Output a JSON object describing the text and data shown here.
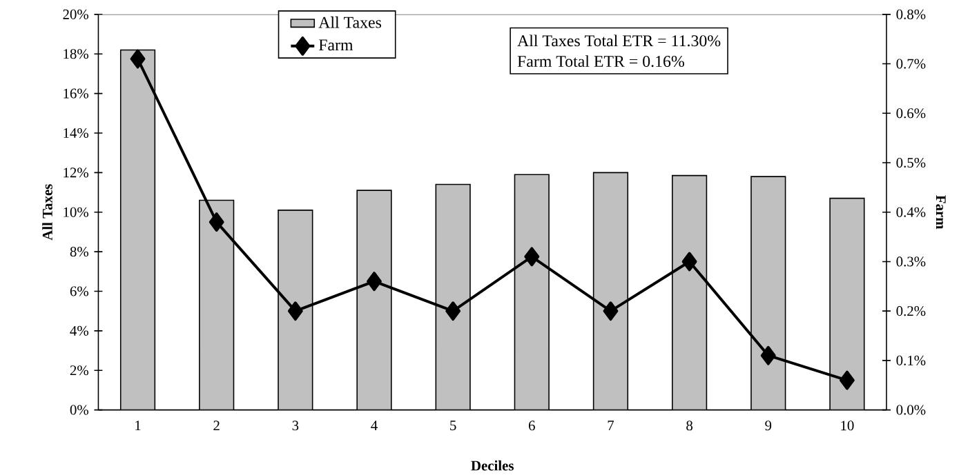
{
  "chart_data": {
    "type": "bar",
    "xlabel": "Deciles",
    "ylabel": "All Taxes",
    "y2label": "Farm",
    "categories": [
      "1",
      "2",
      "3",
      "4",
      "5",
      "6",
      "7",
      "8",
      "9",
      "10"
    ],
    "series": [
      {
        "name": "All Taxes",
        "color": "#c0c0c0",
        "values": [
          18.2,
          10.6,
          10.1,
          11.1,
          11.4,
          11.9,
          12.0,
          11.85,
          11.8,
          10.7
        ]
      },
      {
        "name": "Farm",
        "type": "line",
        "axis": "y2",
        "color": "#000000",
        "values": [
          0.71,
          0.38,
          0.2,
          0.26,
          0.2,
          0.31,
          0.2,
          0.3,
          0.11,
          0.06
        ]
      }
    ],
    "marker": "diamond",
    "legend": "top",
    "ylim": [
      0,
      20
    ],
    "yticks": [
      {
        "value": 0,
        "label": "0%"
      },
      {
        "value": 2,
        "label": "2%"
      },
      {
        "value": 4,
        "label": "4%"
      },
      {
        "value": 6,
        "label": "6%"
      },
      {
        "value": 8,
        "label": "8%"
      },
      {
        "value": 10,
        "label": "10%"
      },
      {
        "value": 12,
        "label": "12%"
      },
      {
        "value": 14,
        "label": "14%"
      },
      {
        "value": 16,
        "label": "16%"
      },
      {
        "value": 18,
        "label": "18%"
      },
      {
        "value": 20,
        "label": "20%"
      }
    ],
    "y2lim": [
      0,
      0.8
    ],
    "y2ticks": [
      {
        "value": 0,
        "label": "0.0%"
      },
      {
        "value": 0.1,
        "label": "0.1%"
      },
      {
        "value": 0.2,
        "label": "0.2%"
      },
      {
        "value": 0.3,
        "label": "0.3%"
      },
      {
        "value": 0.4,
        "label": "0.4%"
      },
      {
        "value": 0.5,
        "label": "0.5%"
      },
      {
        "value": 0.6,
        "label": "0.6%"
      },
      {
        "value": 0.7,
        "label": "0.7%"
      },
      {
        "value": 0.8,
        "label": "0.8%"
      }
    ],
    "annotations": [
      "All Taxes Total ETR  =  11.30%",
      "Farm Total ETR  =  0.16%"
    ]
  }
}
